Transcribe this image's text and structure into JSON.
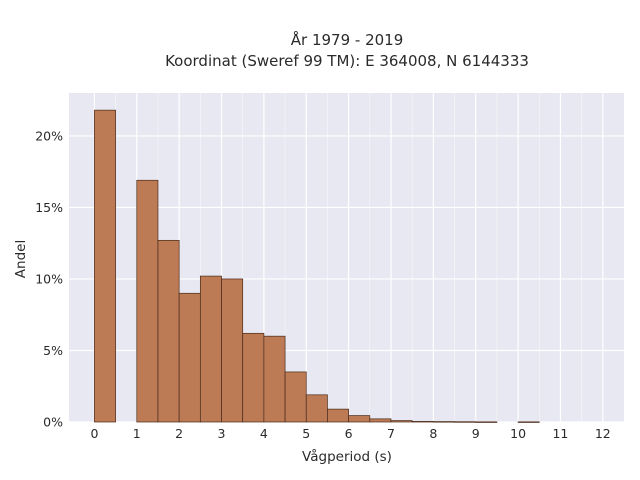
{
  "chart_data": {
    "type": "bar",
    "title": "År 1979 - 2019",
    "subtitle": "Koordinat (Sweref 99 TM): E 364008, N 6144333",
    "xlabel": "Vågperiod (s)",
    "ylabel": "Andel",
    "x_ticks": [
      "0",
      "1",
      "2",
      "3",
      "4",
      "5",
      "6",
      "7",
      "8",
      "9",
      "10",
      "11",
      "12"
    ],
    "y_ticks": [
      "0%",
      "5%",
      "10%",
      "15%",
      "20%"
    ],
    "xlim": [
      -0.6,
      12.5
    ],
    "ylim": [
      0,
      0.23
    ],
    "bin_width": 0.5,
    "bins": [
      {
        "x0": 0.0,
        "value": 0.218
      },
      {
        "x0": 1.0,
        "value": 0.169
      },
      {
        "x0": 1.5,
        "value": 0.127
      },
      {
        "x0": 2.0,
        "value": 0.09
      },
      {
        "x0": 2.5,
        "value": 0.102
      },
      {
        "x0": 3.0,
        "value": 0.1
      },
      {
        "x0": 3.5,
        "value": 0.062
      },
      {
        "x0": 4.0,
        "value": 0.06
      },
      {
        "x0": 4.5,
        "value": 0.035
      },
      {
        "x0": 5.0,
        "value": 0.019
      },
      {
        "x0": 5.5,
        "value": 0.009
      },
      {
        "x0": 6.0,
        "value": 0.0045
      },
      {
        "x0": 6.5,
        "value": 0.0022
      },
      {
        "x0": 7.0,
        "value": 0.001
      },
      {
        "x0": 7.5,
        "value": 0.0004
      },
      {
        "x0": 8.0,
        "value": 0.0003
      },
      {
        "x0": 8.5,
        "value": 0.0002
      },
      {
        "x0": 9.0,
        "value": 0.0001
      },
      {
        "x0": 10.0,
        "value": 0.0001
      }
    ],
    "grid": true,
    "colors": {
      "bar_fill": "#bd7b55",
      "bar_edge": "#4a2a1a",
      "plot_bg": "#e7e8f1",
      "grid": "#ffffff"
    }
  }
}
